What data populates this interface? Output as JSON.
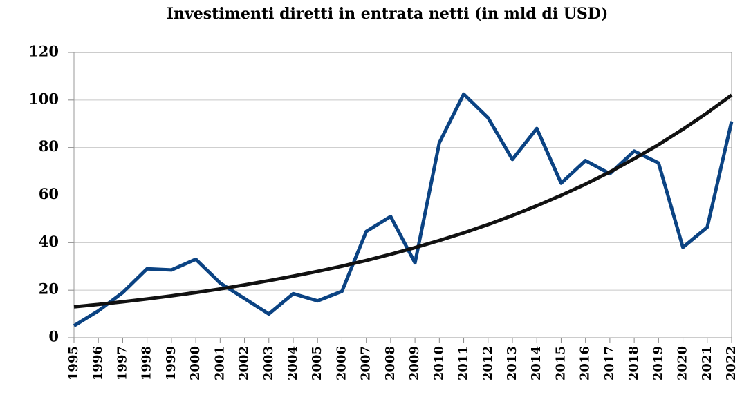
{
  "chart_data": {
    "type": "line",
    "title": "Investimenti diretti in entrata netti (in mld di USD)",
    "categories": [
      "1995",
      "1996",
      "1997",
      "1998",
      "1999",
      "2000",
      "2001",
      "2002",
      "2003",
      "2004",
      "2005",
      "2006",
      "2007",
      "2008",
      "2009",
      "2010",
      "2011",
      "2012",
      "2013",
      "2014",
      "2015",
      "2016",
      "2017",
      "2018",
      "2019",
      "2020",
      "2021",
      "2022"
    ],
    "series": [
      {
        "color": "#0b4383",
        "values": [
          5,
          11.3,
          19,
          29,
          28.5,
          33,
          23,
          16.5,
          10,
          18.5,
          15.5,
          19.5,
          44.7,
          51,
          31.5,
          82,
          102.5,
          92.5,
          75,
          88,
          65,
          74.5,
          69,
          78.5,
          73.5,
          38,
          46.5,
          91
        ]
      },
      {
        "color": "#111111",
        "values": [
          13,
          14,
          15.1,
          16.3,
          17.6,
          19,
          20.5,
          22.2,
          24,
          25.9,
          27.9,
          30.1,
          32.5,
          35.1,
          37.9,
          40.9,
          44.1,
          47.6,
          51.4,
          55.5,
          59.9,
          64.6,
          69.7,
          75.3,
          81.2,
          87.7,
          94.6,
          102.1
        ]
      }
    ],
    "ylim": [
      0,
      120
    ],
    "yticks": [
      0,
      20,
      40,
      60,
      80,
      100,
      120
    ],
    "grid": true
  }
}
